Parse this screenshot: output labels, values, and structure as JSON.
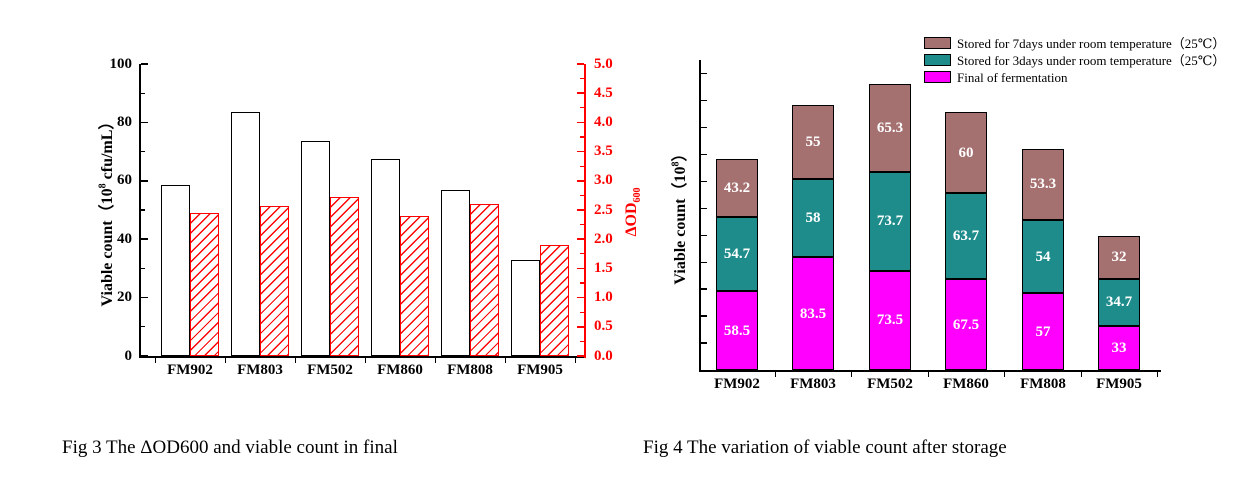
{
  "figures": [
    {
      "caption": "Fig 3 The ΔOD600 and viable count in final"
    },
    {
      "caption": "Fig 4 The variation of viable count after storage"
    }
  ],
  "chart_data": [
    {
      "type": "bar",
      "subtype": "grouped-dual-axis",
      "categories": [
        "FM902",
        "FM803",
        "FM502",
        "FM860",
        "FM808",
        "FM905"
      ],
      "series": [
        {
          "name": "Viable count",
          "yaxis": "left",
          "bar_style": "white-with-black-border",
          "values": [
            58.5,
            83.5,
            73.5,
            67.5,
            57,
            33
          ]
        },
        {
          "name": "ΔOD600",
          "yaxis": "right",
          "bar_style": "white-with-red-diagonal-hatch",
          "values": [
            2.45,
            2.56,
            2.73,
            2.4,
            2.6,
            1.9
          ]
        }
      ],
      "left_axis": {
        "label_parts": {
          "pre": "Viable count（10",
          "sup": "8",
          "post": " cfu/mL）"
        },
        "ylim": [
          0,
          100
        ],
        "tick_labels": [
          "0",
          "20",
          "40",
          "60",
          "80",
          "100"
        ],
        "minor_tick_step": 10,
        "color": "#000000"
      },
      "right_axis": {
        "label_parts": {
          "pre": "ΔOD",
          "sub": "600",
          "post": ""
        },
        "ylim": [
          0,
          5
        ],
        "tick_labels": [
          "0.0",
          "0.5",
          "1.0",
          "1.5",
          "2.0",
          "2.5",
          "3.0",
          "3.5",
          "4.0",
          "4.5",
          "5.0"
        ],
        "minor_tick_step": 0.25,
        "color": "#FF0000"
      },
      "grid": false,
      "legend": null
    },
    {
      "type": "bar",
      "subtype": "stacked",
      "categories": [
        "FM902",
        "FM803",
        "FM502",
        "FM860",
        "FM808",
        "FM905"
      ],
      "series": [
        {
          "name": "Final of fermentation",
          "color": "#FF00FF",
          "values": [
            58.5,
            83.5,
            73.5,
            67.5,
            57,
            33
          ]
        },
        {
          "name": "Stored for 3days under room temperature（25℃）",
          "color": "#1F8C8C",
          "values": [
            54.7,
            58,
            73.7,
            63.7,
            54,
            34.7
          ]
        },
        {
          "name": "Stored for 7days under room temperature（25℃）",
          "color": "#A57070",
          "values": [
            43.2,
            55,
            65.3,
            60,
            53.3,
            32
          ]
        }
      ],
      "value_label_color": "#FFFFFF",
      "left_axis": {
        "label_parts": {
          "pre": "Viable count（10",
          "sup": "8",
          "post": "）"
        },
        "ylim": [
          0,
          230
        ],
        "tick_step": 20,
        "tick_labels_shown": false,
        "color": "#000000"
      },
      "legend": {
        "position": "top-right",
        "order": "top-to-bottom-reversed"
      },
      "grid": false
    }
  ]
}
